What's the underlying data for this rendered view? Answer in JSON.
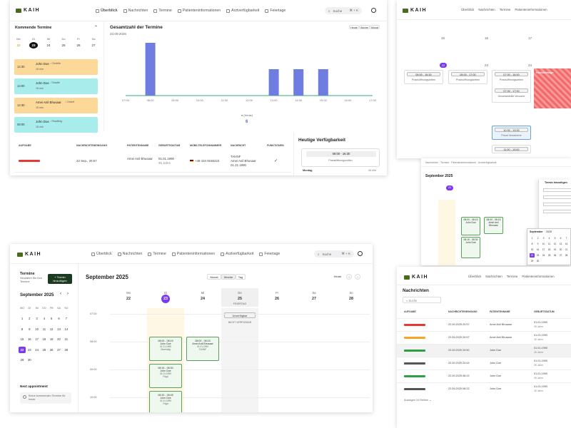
{
  "nav": {
    "brand": "KAIH",
    "links": [
      "Überblick",
      "Nachrichten",
      "Termine",
      "Patienteninformationen",
      "Arztverfügbarkeit",
      "Feiertage"
    ],
    "search_label": "Suche",
    "search_shortcut": "⌘ + K"
  },
  "dash": {
    "upcoming_title": "Kommende Termine",
    "week_days": [
      "Mo",
      "Di",
      "Mi",
      "Do",
      "Fr",
      "Sa"
    ],
    "week_dates": [
      "22",
      "23",
      "24",
      "25",
      "26",
      "27"
    ],
    "appointments": [
      {
        "time": "14:30",
        "name": "John Doe",
        "type": "Ordelfe",
        "dur": "15 min",
        "color": "#fcd998"
      },
      {
        "time": "13:00",
        "name": "John Doe",
        "type": "Bradfe",
        "dur": "15 min",
        "color": "#a9ecec"
      },
      {
        "time": "12:30",
        "name": "Amei Anil Bhusaar",
        "type": "Ordelf",
        "dur": "15 min",
        "color": "#fcd998"
      },
      {
        "time": "08:00",
        "name": "John Doe",
        "type": "Bradfelg",
        "dur": "15 min",
        "color": "#a9ecec"
      }
    ],
    "chart_title": "Gesamtzahl der Termine",
    "chart_date": "23.09.2025",
    "range_buttons": [
      "Heute",
      "Woche",
      "Monat"
    ],
    "legend_label": "(Heute)",
    "legend_count": "6",
    "table_headers": [
      "Aufgabe",
      "Nachrichteneingang",
      "Patientenname",
      "Geburtsdatum",
      "Mobiltelefonnummer",
      "Nachricht",
      "Funktionen"
    ],
    "table_row": {
      "badge_color": "#e53935",
      "received": "22 Sep., 20:57",
      "patient": "Amei Anil Bhusaar",
      "birth": "01.01.1990",
      "age": "35 Jahre",
      "phone": "+49 434 9155222",
      "msg_title": "TAHNF",
      "msg_body": "Amei Anil Bhusaar",
      "msg_date": "01.21.1990"
    },
    "avail_title": "Heutige Verfügbarkeit",
    "avail_time": "08:00 - 16:30",
    "avail_sub": "Praxisöffnungszeiten",
    "avail_day": "Montag",
    "avail_day_time": "10 Uhr"
  },
  "chart_data": {
    "type": "bar",
    "title": "Gesamtzahl der Termine",
    "categories": [
      "07:00",
      "08:00",
      "09:00",
      "10:00",
      "11:00",
      "12:00",
      "13:00",
      "14:00",
      "15:00",
      "16:00",
      "17:00"
    ],
    "values": [
      0,
      1,
      0,
      0,
      0,
      0,
      0.5,
      0.5,
      0.5,
      0,
      0
    ],
    "legend": "(Heute)",
    "ylim": [
      0,
      1
    ]
  },
  "week": {
    "title": "September 2025",
    "add_button": "Termin hinzufügen",
    "section_label": "Termine",
    "section_sub": "Verwalten Sie Ihre Termine",
    "view_buttons": [
      "Monat",
      "Woche",
      "Tag"
    ],
    "today_button": "Heute",
    "day_names": [
      "Mo",
      "Di",
      "Mi",
      "Do",
      "Fr",
      "Sa",
      "So"
    ],
    "day_dates": [
      "22",
      "23",
      "24",
      "25",
      "26",
      "27",
      "28"
    ],
    "holiday_label": "FEIERTAG",
    "times": [
      "07:00",
      "08:00",
      "09:00",
      "10:00"
    ],
    "unavailable": "Unverfügbar",
    "unavailable_sub": "NICHT VERFÜGBAR",
    "next_label": "Next appointment",
    "no_appts": "Keine kommenden Termine für heute",
    "slots": [
      {
        "time": "08:00 - 08:15",
        "name": "John Doe",
        "date": "01.01.1990",
        "note": "Überholig"
      },
      {
        "time": "08:00 - 08:15",
        "name": "Amei Anil Bhusaar",
        "date": "01.01.1990",
        "note": "TAHNF"
      },
      {
        "time": "08:15 - 08:30",
        "name": "John Doe",
        "date": "01.01.1990",
        "note": "Fdgd"
      },
      {
        "time": "08:30 - 08:45",
        "name": "John Doe",
        "date": "01.01.1990",
        "note": "Fdgd"
      }
    ]
  },
  "mini_cal": {
    "title": "September 2025",
    "head": [
      "MO",
      "DI",
      "MI",
      "DO",
      "FR",
      "SA",
      "SO"
    ],
    "rows": [
      [
        "1",
        "2",
        "3",
        "4",
        "5",
        "6",
        "7"
      ],
      [
        "8",
        "9",
        "10",
        "11",
        "12",
        "13",
        "14"
      ],
      [
        "15",
        "16",
        "17",
        "18",
        "19",
        "20",
        "21"
      ],
      [
        "22",
        "23",
        "24",
        "25",
        "26",
        "27",
        "28"
      ],
      [
        "29",
        "30",
        "",
        "",
        "",
        "",
        ""
      ]
    ]
  },
  "right_top": {
    "day_nums": [
      "15",
      "16",
      "17"
    ],
    "day_nums2": [
      "22",
      "23",
      "24"
    ],
    "slot1": "08:00 - 16:30",
    "slot1_sub": "Praxisöffnungszeiten",
    "slot2": "08:00 - 17:00",
    "slot3": "07:00 - 16:00",
    "slot3_sub": "Gesamtzuteilte Versuche",
    "slot4": "07:00 - 17:00",
    "slot5": "10:00 - 13:00",
    "slot5_sub": "Privat Versicherte",
    "slot6": "11:00 - 13:00",
    "holiday": "Hochbertage"
  },
  "messages": {
    "title": "Nachrichten",
    "search": "Suche",
    "headers": [
      "Aufgabe",
      "Nachrichteneingang",
      "Patientenname",
      "Geburtsdatum"
    ],
    "rows": [
      {
        "color": "#e53935",
        "date": "22.09.2025 20:57",
        "name": "Amei Anil Bhusaar",
        "birth": "01.01.1990",
        "age": "35 Jahre"
      },
      {
        "color": "#f5a623",
        "date": "22.09.2025 20:57",
        "name": "Amei Anil Bhusaar",
        "birth": "01.01.1990",
        "age": "35 Jahre"
      },
      {
        "color": "#2e9e43",
        "date": "22.09.2025 20:50",
        "name": "John Doe",
        "birth": "01.01.1990",
        "age": "35 Jahre"
      },
      {
        "color": "#555555",
        "date": "22.09.2025 20:44",
        "name": "John Doe",
        "birth": "01.01.1990",
        "age": "35 Jahre"
      },
      {
        "color": "#2e9e43",
        "date": "22.09.2025 08:22",
        "name": "John Doe",
        "birth": "01.01.1990",
        "age": "35 Jahre"
      },
      {
        "color": "#555555",
        "date": "22.09.2025 08:22",
        "name": "John Doe",
        "birth": "01.01.1990",
        "age": "35 Jahre"
      }
    ],
    "footer": "Anzeigen 10 Reihen"
  },
  "modal": {
    "title": "Termin hinzufügen",
    "month": "September",
    "year": "2025"
  }
}
